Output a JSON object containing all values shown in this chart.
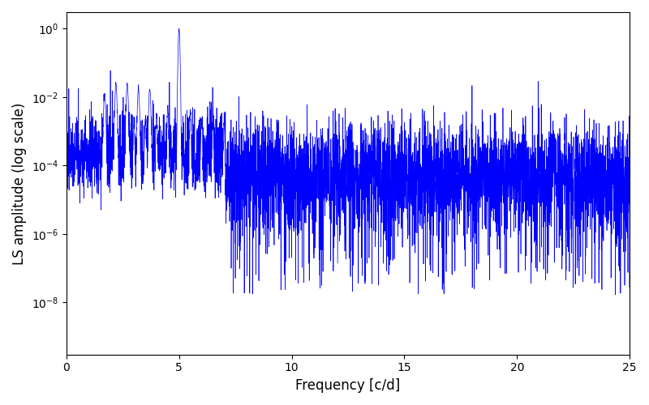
{
  "xlabel": "Frequency [c/d]",
  "ylabel": "LS amplitude (log scale)",
  "xlim": [
    0,
    25
  ],
  "ylim_bottom": 3e-10,
  "ylim_top": 3.0,
  "line_color": "#0000ff",
  "line_width": 0.5,
  "figsize": [
    8.0,
    5.0
  ],
  "dpi": 100,
  "background_color": "#ffffff",
  "freq_max": 25.0,
  "num_points": 5000,
  "noise_floor": 5e-05,
  "noise_log_std": 1.8,
  "peak1_freq": 2.7,
  "peak1_amp": 0.025,
  "peak2_freq": 5.0,
  "peak2_amp": 1.0
}
